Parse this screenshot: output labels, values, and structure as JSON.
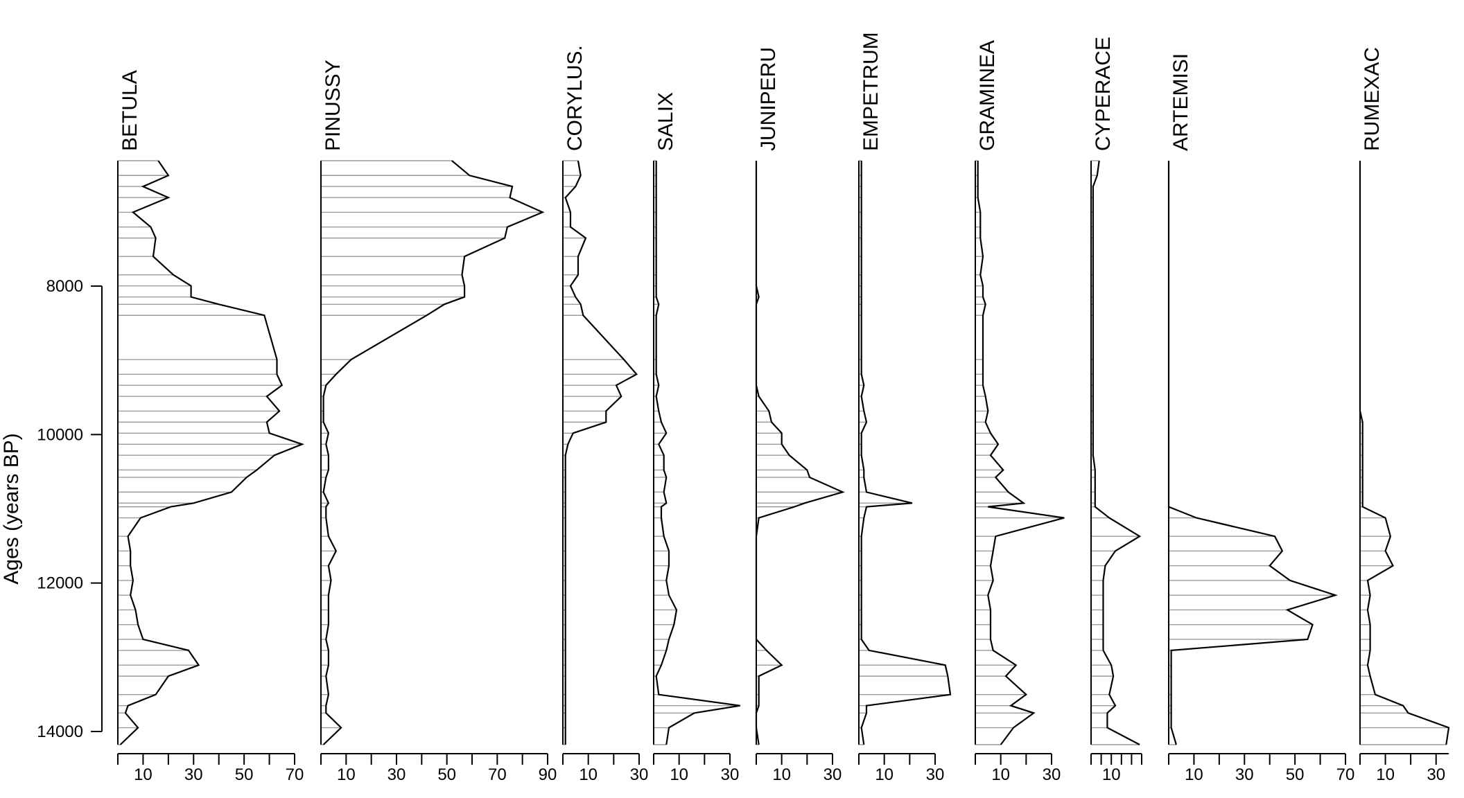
{
  "chart_data": {
    "type": "area",
    "ylabel": "Ages (years BP)",
    "ylim": [
      6300,
      14250
    ],
    "y_ticks": [
      8000,
      10000,
      12000,
      14000
    ],
    "ages": [
      6300,
      6500,
      6650,
      6800,
      7000,
      7200,
      7350,
      7600,
      7850,
      8000,
      8150,
      8250,
      8400,
      9000,
      9200,
      9350,
      9500,
      9700,
      9850,
      10000,
      10150,
      10300,
      10500,
      10600,
      10800,
      10950,
      11000,
      11150,
      11400,
      11600,
      11800,
      12000,
      12200,
      12400,
      12600,
      12800,
      12950,
      13150,
      13300,
      13550,
      13700,
      13800,
      14000,
      14230
    ],
    "series": [
      {
        "name": "BETULA",
        "ticks": [
          10,
          30,
          50,
          70
        ],
        "xlim": [
          0,
          70
        ],
        "values": [
          16,
          20,
          10,
          20,
          6,
          13,
          15,
          14,
          22,
          29,
          29,
          40,
          58,
          63,
          63,
          65,
          59,
          64,
          59,
          60,
          73,
          62,
          55,
          51,
          45,
          30,
          21,
          9,
          4,
          5,
          5,
          6,
          5,
          7,
          8,
          10,
          28,
          32,
          20,
          15,
          4,
          3,
          8,
          1
        ]
      },
      {
        "name": "PINUSSY",
        "ticks": [
          10,
          30,
          50,
          70,
          90
        ],
        "xlim": [
          0,
          90
        ],
        "values": [
          52,
          59,
          76,
          75,
          88,
          74,
          73,
          57,
          56,
          57,
          57,
          49,
          42,
          12,
          6,
          2,
          1,
          1,
          1,
          3,
          2,
          3,
          3,
          2,
          1,
          3,
          2,
          2,
          3,
          6,
          3,
          4,
          3,
          3,
          3,
          2,
          3,
          3,
          2,
          3,
          2,
          2,
          8,
          1
        ]
      },
      {
        "name": "CORYLUS.",
        "ticks": [
          10,
          30
        ],
        "xlim": [
          0,
          30
        ],
        "values": [
          6,
          7,
          5,
          1,
          3,
          3,
          9,
          6,
          6,
          3,
          5,
          7,
          8,
          24,
          29,
          21,
          23,
          17,
          17,
          4,
          2,
          1,
          1,
          1,
          1,
          1,
          1,
          1,
          1,
          1,
          1,
          1,
          1,
          1,
          1,
          1,
          1,
          1,
          1,
          1,
          1,
          1,
          1,
          1
        ]
      },
      {
        "name": "SALIX",
        "ticks": [
          10,
          30
        ],
        "xlim": [
          0,
          30
        ],
        "values": [
          1,
          1,
          1,
          1,
          1,
          1,
          1,
          1,
          1,
          1,
          1,
          2,
          1,
          1,
          1,
          2,
          1,
          2,
          3,
          5,
          2,
          4,
          4,
          5,
          4,
          5,
          3,
          3,
          4,
          6,
          6,
          5,
          6,
          9,
          8,
          6,
          5,
          3,
          1,
          2,
          34,
          16,
          6,
          5
        ]
      },
      {
        "name": "JUNIPERU",
        "ticks": [
          10,
          30
        ],
        "xlim": [
          0,
          30
        ],
        "values": [
          0,
          0,
          0,
          0,
          0,
          0,
          0,
          0,
          0,
          0,
          1,
          0,
          0,
          0,
          0,
          0,
          1,
          5,
          6,
          10,
          10,
          13,
          20,
          21,
          34,
          19,
          15,
          1,
          0,
          0,
          0,
          0,
          0,
          0,
          0,
          0,
          4,
          10,
          1,
          1,
          1,
          0,
          0,
          1
        ]
      },
      {
        "name": "EMPETRUM",
        "ticks": [
          10,
          30
        ],
        "xlim": [
          0,
          30
        ],
        "values": [
          1,
          1,
          1,
          1,
          1,
          1,
          1,
          1,
          1,
          1,
          1,
          1,
          1,
          1,
          1,
          2,
          1,
          2,
          3,
          1,
          1,
          1,
          2,
          2,
          3,
          21,
          3,
          2,
          1,
          1,
          1,
          1,
          1,
          1,
          1,
          1,
          4,
          34,
          35,
          36,
          3,
          3,
          1,
          2
        ]
      },
      {
        "name": "GRAMINEA",
        "ticks": [
          10,
          30
        ],
        "xlim": [
          0,
          30
        ],
        "values": [
          1,
          1,
          1,
          1,
          2,
          2,
          2,
          3,
          2,
          3,
          3,
          4,
          3,
          3,
          3,
          3,
          4,
          5,
          4,
          6,
          9,
          6,
          11,
          8,
          13,
          19,
          5,
          35,
          8,
          7,
          6,
          7,
          5,
          6,
          6,
          6,
          7,
          16,
          12,
          20,
          14,
          23,
          15,
          10
        ]
      },
      {
        "name": "CYPERACE",
        "ticks": [
          10
        ],
        "xlim": [
          0,
          25
        ],
        "values": [
          4,
          3,
          1,
          1,
          1,
          1,
          1,
          1,
          1,
          1,
          1,
          1,
          1,
          1,
          1,
          1,
          1,
          1,
          1,
          1,
          1,
          1,
          2,
          2,
          2,
          2,
          2,
          9,
          24,
          12,
          7,
          6,
          6,
          6,
          6,
          6,
          6,
          10,
          11,
          9,
          12,
          8,
          8,
          24
        ]
      },
      {
        "name": "ARTEMISI",
        "ticks": [
          10,
          30,
          50,
          70
        ],
        "xlim": [
          0,
          70
        ],
        "values": [
          0,
          0,
          0,
          0,
          0,
          0,
          0,
          0,
          0,
          0,
          0,
          0,
          0,
          0,
          0,
          0,
          0,
          0,
          0,
          0,
          0,
          0,
          0,
          0,
          0,
          0,
          0,
          11,
          42,
          45,
          40,
          48,
          66,
          47,
          57,
          55,
          1,
          1,
          1,
          1,
          1,
          1,
          1,
          3
        ]
      },
      {
        "name": "RUMEXAC",
        "ticks": [
          10,
          30
        ],
        "xlim": [
          0,
          35
        ],
        "values": [
          0,
          0,
          0,
          0,
          0,
          0,
          0,
          0,
          0,
          0,
          0,
          0,
          0,
          0,
          0,
          0,
          0,
          0,
          1,
          1,
          1,
          1,
          1,
          1,
          1,
          1,
          1,
          10,
          12,
          10,
          13,
          3,
          4,
          3,
          4,
          4,
          4,
          3,
          4,
          6,
          17,
          19,
          35,
          34
        ]
      }
    ]
  }
}
